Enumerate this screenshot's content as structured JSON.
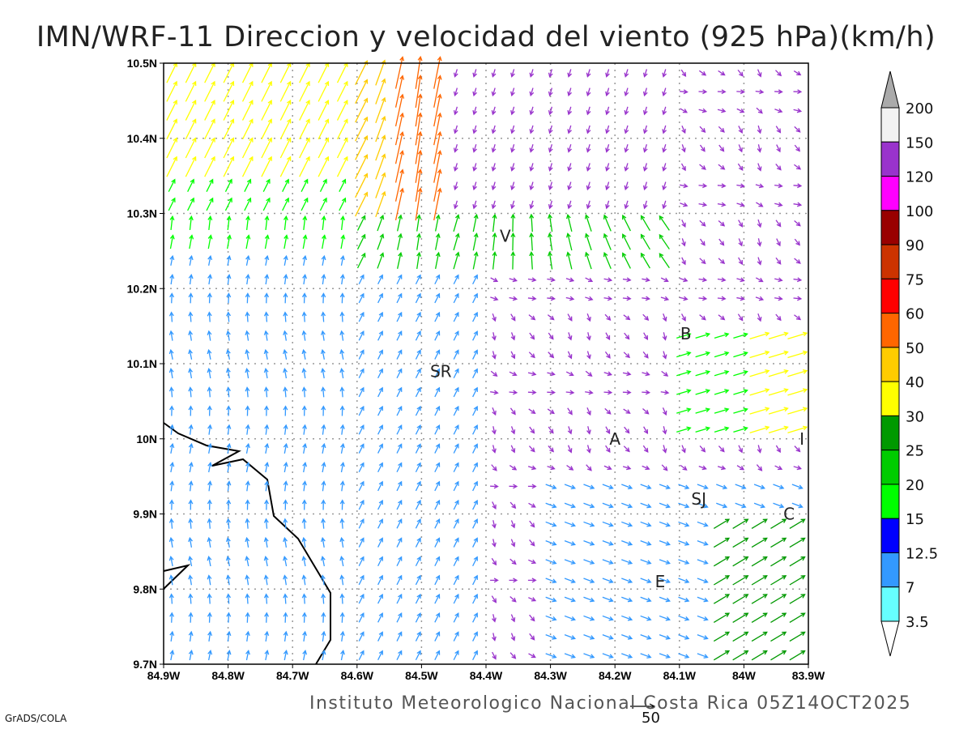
{
  "title": "IMN/WRF-11 Direccion y velocidad del viento (925 hPa)(km/h)",
  "footer": "Instituto Meteorologico Nacional Costa Rica 05Z14OCT2025",
  "credit": "GrADS/COLA",
  "reference_vector_label": "50",
  "map": {
    "lon_range": [
      -84.9,
      -83.9
    ],
    "lat_range": [
      9.7,
      10.5
    ],
    "lon_ticks": [
      "84.9W",
      "84.8W",
      "84.7W",
      "84.6W",
      "84.5W",
      "84.4W",
      "84.3W",
      "84.2W",
      "84.1W",
      "84W",
      "83.9W"
    ],
    "lat_ticks": [
      "10.5N",
      "10.4N",
      "10.3N",
      "10.2N",
      "10.1N",
      "10N",
      "9.9N",
      "9.8N",
      "9.7N"
    ],
    "cities": [
      {
        "label": "V",
        "lon": -84.37,
        "lat": 10.27
      },
      {
        "label": "SR",
        "lon": -84.47,
        "lat": 10.09
      },
      {
        "label": "B",
        "lon": -84.09,
        "lat": 10.14
      },
      {
        "label": "A",
        "lon": -84.2,
        "lat": 10.0
      },
      {
        "label": "SJ",
        "lon": -84.07,
        "lat": 9.92
      },
      {
        "label": "C",
        "lon": -83.93,
        "lat": 9.9
      },
      {
        "label": "E",
        "lon": -84.13,
        "lat": 9.81
      },
      {
        "label": "I",
        "lon": -83.91,
        "lat": 10.0
      }
    ]
  },
  "colorbar": {
    "labels": [
      "200",
      "150",
      "120",
      "100",
      "90",
      "75",
      "60",
      "50",
      "40",
      "30",
      "25",
      "20",
      "15",
      "12.5",
      "7",
      "3.5"
    ],
    "colors": [
      "#f2f2f2",
      "#9933cc",
      "#ff00ff",
      "#990000",
      "#cc3300",
      "#ff0000",
      "#ff6600",
      "#ffcc00",
      "#ffff00",
      "#009900",
      "#00cc00",
      "#00ff00",
      "#0000ff",
      "#3399ff",
      "#66ffff"
    ],
    "over_color": "#aaaaaa",
    "under_color": "#ffffff"
  }
}
